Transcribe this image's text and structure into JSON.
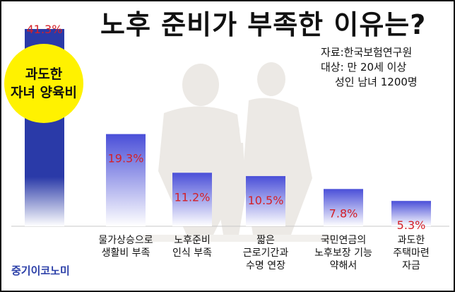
{
  "title": "노후 준비가 부족한 이유는?",
  "source": {
    "line1": "자료:한국보험연구원",
    "line2": "대상: 만 20세 이상",
    "line3": "성인 남녀 1200명"
  },
  "callout": {
    "line1": "과도한",
    "line2": "자녀 양육비"
  },
  "logo": "중기이코노미",
  "colors": {
    "bar_top": "#4a4fd8",
    "bar_first": "#2a3aa8",
    "label": "#d42027",
    "callout": "#fff200"
  },
  "chart_data": {
    "type": "bar",
    "title": "노후 준비가 부족한 이유는?",
    "ylabel": "",
    "xlabel": "",
    "ylim": [
      0,
      45
    ],
    "categories": [
      [
        "과도한",
        "자녀 양육비"
      ],
      [
        "물가상승으로",
        "생활비 부족"
      ],
      [
        "노후준비",
        "인식 부족"
      ],
      [
        "짧은",
        "근로기간과",
        "수명 연장"
      ],
      [
        "국민연금의",
        "노후보장 기능",
        "약해서"
      ],
      [
        "과도한",
        "주택마련",
        "자금"
      ]
    ],
    "values": [
      41.3,
      19.3,
      11.2,
      10.5,
      7.8,
      5.3
    ],
    "value_labels": [
      "41.3%",
      "19.3%",
      "11.2%",
      "10.5%",
      "7.8%",
      "5.3%"
    ],
    "grid": false,
    "legend": "none"
  }
}
